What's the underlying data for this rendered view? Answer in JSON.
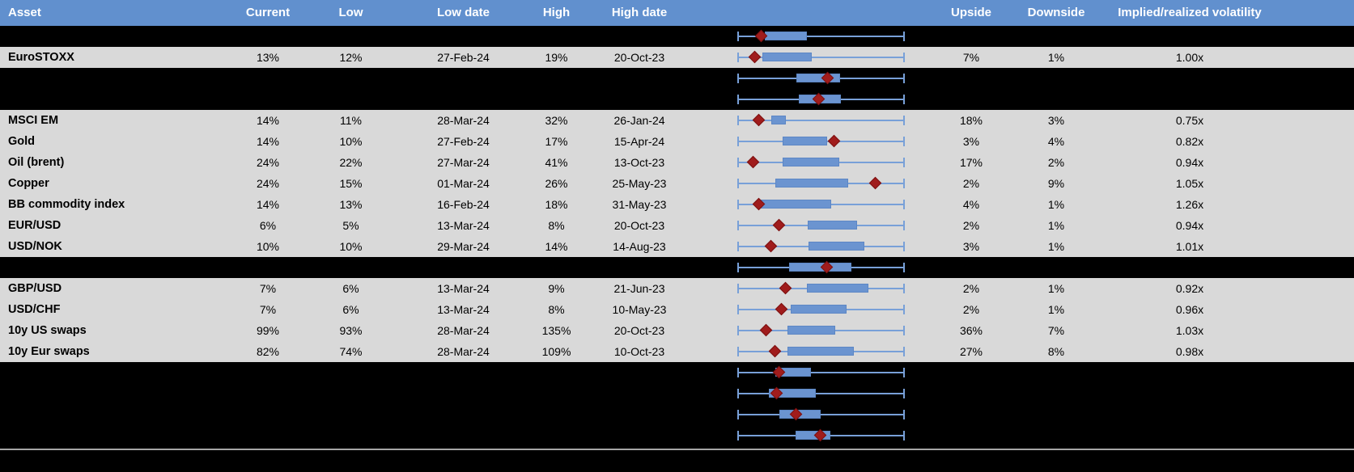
{
  "colors": {
    "header_bg": "#6190ce",
    "header_text": "#ffffff",
    "row_light_bg": "#d9d9d9",
    "row_dark_bg": "#000000",
    "box_fill": "#6b94d0",
    "box_border": "#5d87c5",
    "whisker": "#78a0d8",
    "marker_fill": "#a01c1c",
    "marker_border": "#7a1111",
    "separator_line": "#a6a6a6",
    "body_text": "#000000"
  },
  "chart_data": {
    "type": "table",
    "columns": [
      "Asset",
      "Current",
      "Low",
      "Low date",
      "High",
      "High date",
      "",
      "Upside",
      "Downside",
      "Implied/realized volatility"
    ],
    "embedded_chart": {
      "type": "boxplot",
      "orientation": "horizontal",
      "scale_note": "Each row normalized to its own 1y low-high range: whiskers always span full width (0 to 1); blue box = interquartile band; red diamond = current level",
      "xlim": [
        0,
        1
      ],
      "grid": false,
      "legend": "none"
    },
    "rows": [
      {
        "asset": "",
        "row_style": "dark",
        "box": [
          0.16,
          0.415
        ],
        "marker": 0.14
      },
      {
        "asset": "EuroSTOXX",
        "row_style": "light",
        "current": "13%",
        "low": "12%",
        "low_date": "27-Feb-24",
        "high": "19%",
        "high_date": "20-Oct-23",
        "upside": "7%",
        "downside": "1%",
        "implied_realized": "1.00x",
        "box": [
          0.145,
          0.445
        ],
        "marker": 0.1
      },
      {
        "asset": "",
        "row_style": "dark",
        "box": [
          0.353,
          0.616
        ],
        "marker": 0.54
      },
      {
        "asset": "",
        "row_style": "dark",
        "box": [
          0.364,
          0.62
        ],
        "marker": 0.486
      },
      {
        "asset": "MSCI EM",
        "row_style": "light",
        "current": "14%",
        "low": "11%",
        "low_date": "28-Mar-24",
        "high": "32%",
        "high_date": "26-Jan-24",
        "upside": "18%",
        "downside": "3%",
        "implied_realized": "0.75x",
        "box": [
          0.2,
          0.29
        ],
        "marker": 0.123
      },
      {
        "asset": "Gold",
        "row_style": "light",
        "current": "14%",
        "low": "10%",
        "low_date": "27-Feb-24",
        "high": "17%",
        "high_date": "15-Apr-24",
        "upside": "3%",
        "downside": "4%",
        "implied_realized": "0.82x",
        "box": [
          0.267,
          0.535
        ],
        "marker": 0.579
      },
      {
        "asset": "Oil (brent)",
        "row_style": "light",
        "current": "24%",
        "low": "22%",
        "low_date": "27-Mar-24",
        "high": "41%",
        "high_date": "13-Oct-23",
        "upside": "17%",
        "downside": "2%",
        "implied_realized": "0.94x",
        "box": [
          0.267,
          0.608
        ],
        "marker": 0.088
      },
      {
        "asset": "Copper",
        "row_style": "light",
        "current": "24%",
        "low": "15%",
        "low_date": "01-Mar-24",
        "high": "26%",
        "high_date": "25-May-23",
        "upside": "2%",
        "downside": "9%",
        "implied_realized": "1.05x",
        "box": [
          0.223,
          0.665
        ],
        "marker": 0.828
      },
      {
        "asset": "BB commodity index",
        "row_style": "light",
        "current": "14%",
        "low": "13%",
        "low_date": "16-Feb-24",
        "high": "18%",
        "high_date": "31-May-23",
        "upside": "4%",
        "downside": "1%",
        "implied_realized": "1.26x",
        "box": [
          0.137,
          0.559
        ],
        "marker": 0.123
      },
      {
        "asset": "EUR/USD",
        "row_style": "light",
        "current": "6%",
        "low": "5%",
        "low_date": "13-Mar-24",
        "high": "8%",
        "high_date": "20-Oct-23",
        "upside": "2%",
        "downside": "1%",
        "implied_realized": "0.94x",
        "box": [
          0.421,
          0.719
        ],
        "marker": 0.247
      },
      {
        "asset": "USD/NOK",
        "row_style": "light",
        "current": "10%",
        "low": "10%",
        "low_date": "29-Mar-24",
        "high": "14%",
        "high_date": "14-Aug-23",
        "upside": "3%",
        "downside": "1%",
        "implied_realized": "1.01x",
        "box": [
          0.423,
          0.762
        ],
        "marker": 0.198
      },
      {
        "asset": "",
        "row_style": "dark",
        "box": [
          0.307,
          0.681
        ],
        "marker": 0.535
      },
      {
        "asset": "GBP/USD",
        "row_style": "light",
        "current": "7%",
        "low": "6%",
        "low_date": "13-Mar-24",
        "high": "9%",
        "high_date": "21-Jun-23",
        "upside": "2%",
        "downside": "1%",
        "implied_realized": "0.92x",
        "box": [
          0.413,
          0.787
        ],
        "marker": 0.286
      },
      {
        "asset": "USD/CHF",
        "row_style": "light",
        "current": "7%",
        "low": "6%",
        "low_date": "13-Mar-24",
        "high": "8%",
        "high_date": "10-May-23",
        "upside": "2%",
        "downside": "1%",
        "implied_realized": "0.96x",
        "box": [
          0.316,
          0.654
        ],
        "marker": 0.262
      },
      {
        "asset": "10y US swaps",
        "row_style": "light",
        "current": "99%",
        "low": "93%",
        "low_date": "28-Mar-24",
        "high": "135%",
        "high_date": "20-Oct-23",
        "upside": "36%",
        "downside": "7%",
        "implied_realized": "1.03x",
        "box": [
          0.296,
          0.584
        ],
        "marker": 0.166
      },
      {
        "asset": "10y Eur swaps",
        "row_style": "light",
        "current": "82%",
        "low": "74%",
        "low_date": "28-Mar-24",
        "high": "109%",
        "high_date": "10-Oct-23",
        "upside": "27%",
        "downside": "8%",
        "implied_realized": "0.98x",
        "box": [
          0.296,
          0.698
        ],
        "marker": 0.223
      },
      {
        "asset": "",
        "row_style": "dark",
        "box": [
          0.226,
          0.438
        ],
        "marker": 0.247
      },
      {
        "asset": "",
        "row_style": "dark",
        "box": [
          0.185,
          0.467
        ],
        "marker": 0.231
      },
      {
        "asset": "",
        "row_style": "dark",
        "box": [
          0.247,
          0.499
        ],
        "marker": 0.351
      },
      {
        "asset": "",
        "row_style": "dark",
        "box": [
          0.345,
          0.556
        ],
        "marker": 0.494
      }
    ]
  }
}
